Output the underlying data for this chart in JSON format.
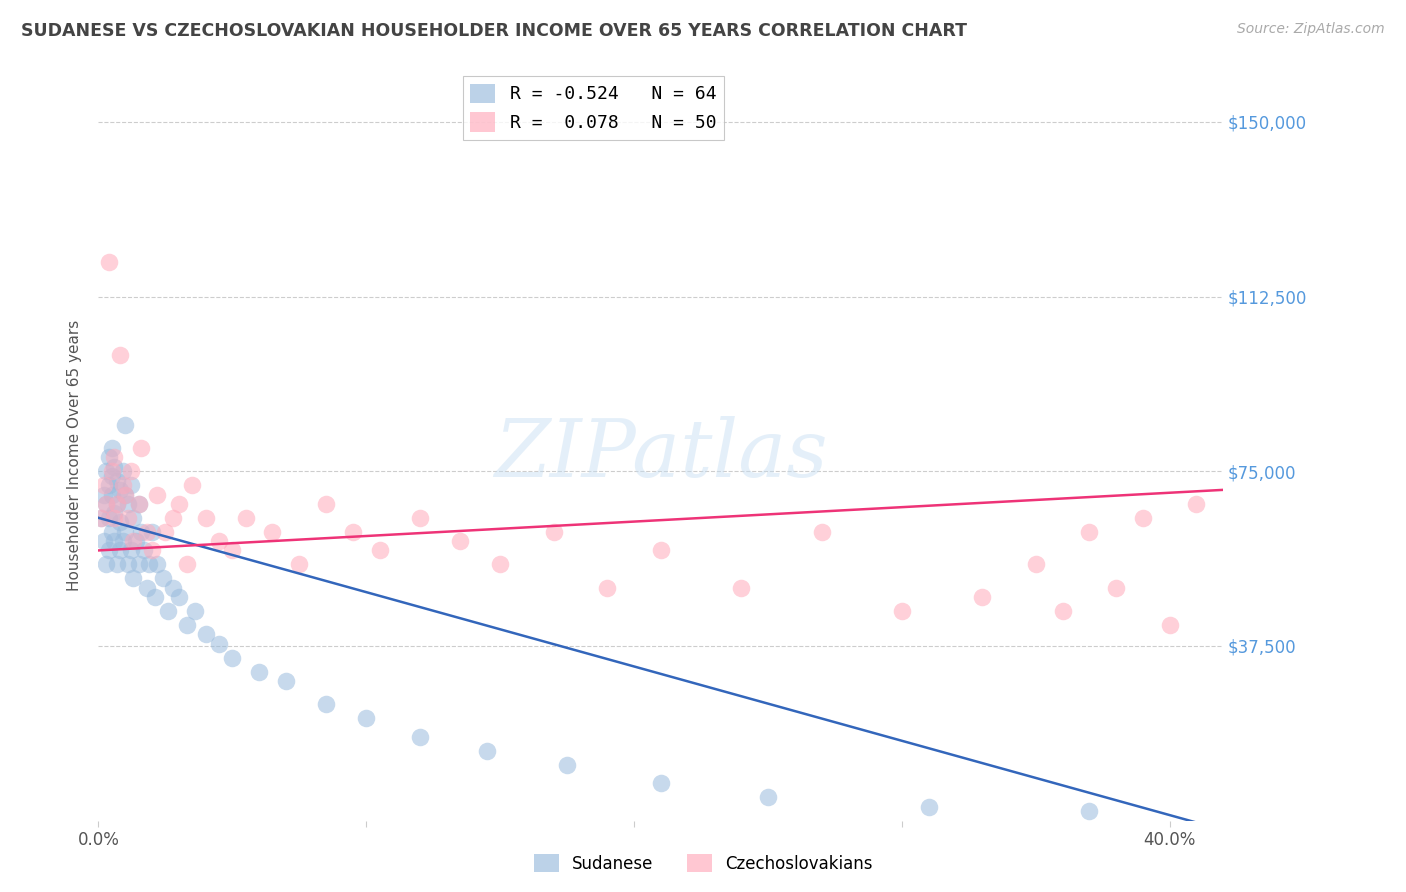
{
  "title": "SUDANESE VS CZECHOSLOVAKIAN HOUSEHOLDER INCOME OVER 65 YEARS CORRELATION CHART",
  "source": "Source: ZipAtlas.com",
  "ylabel": "Householder Income Over 65 years",
  "xlim": [
    0.0,
    0.42
  ],
  "ylim": [
    0,
    157000
  ],
  "ytick_vals": [
    37500,
    75000,
    112500,
    150000
  ],
  "ytick_labels": [
    "$37,500",
    "$75,000",
    "$112,500",
    "$150,000"
  ],
  "background_color": "#ffffff",
  "grid_color": "#c8c8c8",
  "watermark_text": "ZIPatlas",
  "blue_color": "#99bbdd",
  "pink_color": "#ffaabb",
  "blue_line_color": "#3366bb",
  "pink_line_color": "#ee3377",
  "title_color": "#444444",
  "source_color": "#aaaaaa",
  "axis_label_color": "#5599dd",
  "sudanese_x": [
    0.001,
    0.002,
    0.002,
    0.003,
    0.003,
    0.003,
    0.004,
    0.004,
    0.004,
    0.004,
    0.005,
    0.005,
    0.005,
    0.005,
    0.006,
    0.006,
    0.006,
    0.007,
    0.007,
    0.007,
    0.008,
    0.008,
    0.008,
    0.009,
    0.009,
    0.01,
    0.01,
    0.01,
    0.011,
    0.011,
    0.012,
    0.012,
    0.013,
    0.013,
    0.014,
    0.015,
    0.015,
    0.016,
    0.017,
    0.018,
    0.019,
    0.02,
    0.021,
    0.022,
    0.024,
    0.026,
    0.028,
    0.03,
    0.033,
    0.036,
    0.04,
    0.045,
    0.05,
    0.06,
    0.07,
    0.085,
    0.1,
    0.12,
    0.145,
    0.175,
    0.21,
    0.25,
    0.31,
    0.37
  ],
  "sudanese_y": [
    65000,
    70000,
    60000,
    75000,
    68000,
    55000,
    72000,
    78000,
    65000,
    58000,
    80000,
    70000,
    62000,
    74000,
    76000,
    66000,
    60000,
    73000,
    68000,
    55000,
    71000,
    64000,
    58000,
    75000,
    60000,
    85000,
    70000,
    62000,
    68000,
    55000,
    72000,
    58000,
    65000,
    52000,
    60000,
    68000,
    55000,
    62000,
    58000,
    50000,
    55000,
    62000,
    48000,
    55000,
    52000,
    45000,
    50000,
    48000,
    42000,
    45000,
    40000,
    38000,
    35000,
    32000,
    30000,
    25000,
    22000,
    18000,
    15000,
    12000,
    8000,
    5000,
    3000,
    2000
  ],
  "czech_x": [
    0.001,
    0.002,
    0.003,
    0.004,
    0.005,
    0.006,
    0.006,
    0.007,
    0.008,
    0.009,
    0.01,
    0.011,
    0.012,
    0.013,
    0.015,
    0.016,
    0.018,
    0.02,
    0.022,
    0.025,
    0.028,
    0.03,
    0.033,
    0.035,
    0.04,
    0.045,
    0.05,
    0.055,
    0.065,
    0.075,
    0.085,
    0.095,
    0.105,
    0.12,
    0.135,
    0.15,
    0.17,
    0.19,
    0.21,
    0.24,
    0.27,
    0.3,
    0.33,
    0.35,
    0.36,
    0.37,
    0.38,
    0.39,
    0.4,
    0.41
  ],
  "czech_y": [
    65000,
    72000,
    68000,
    120000,
    75000,
    78000,
    65000,
    68000,
    100000,
    72000,
    70000,
    65000,
    75000,
    60000,
    68000,
    80000,
    62000,
    58000,
    70000,
    62000,
    65000,
    68000,
    55000,
    72000,
    65000,
    60000,
    58000,
    65000,
    62000,
    55000,
    68000,
    62000,
    58000,
    65000,
    60000,
    55000,
    62000,
    50000,
    58000,
    50000,
    62000,
    45000,
    48000,
    55000,
    45000,
    62000,
    50000,
    65000,
    42000,
    68000
  ],
  "legend_line1": "R = -0.524   N = 64",
  "legend_line2": "R =  0.078   N = 50",
  "legend_label1": "Sudanese",
  "legend_label2": "Czechoslovakians"
}
